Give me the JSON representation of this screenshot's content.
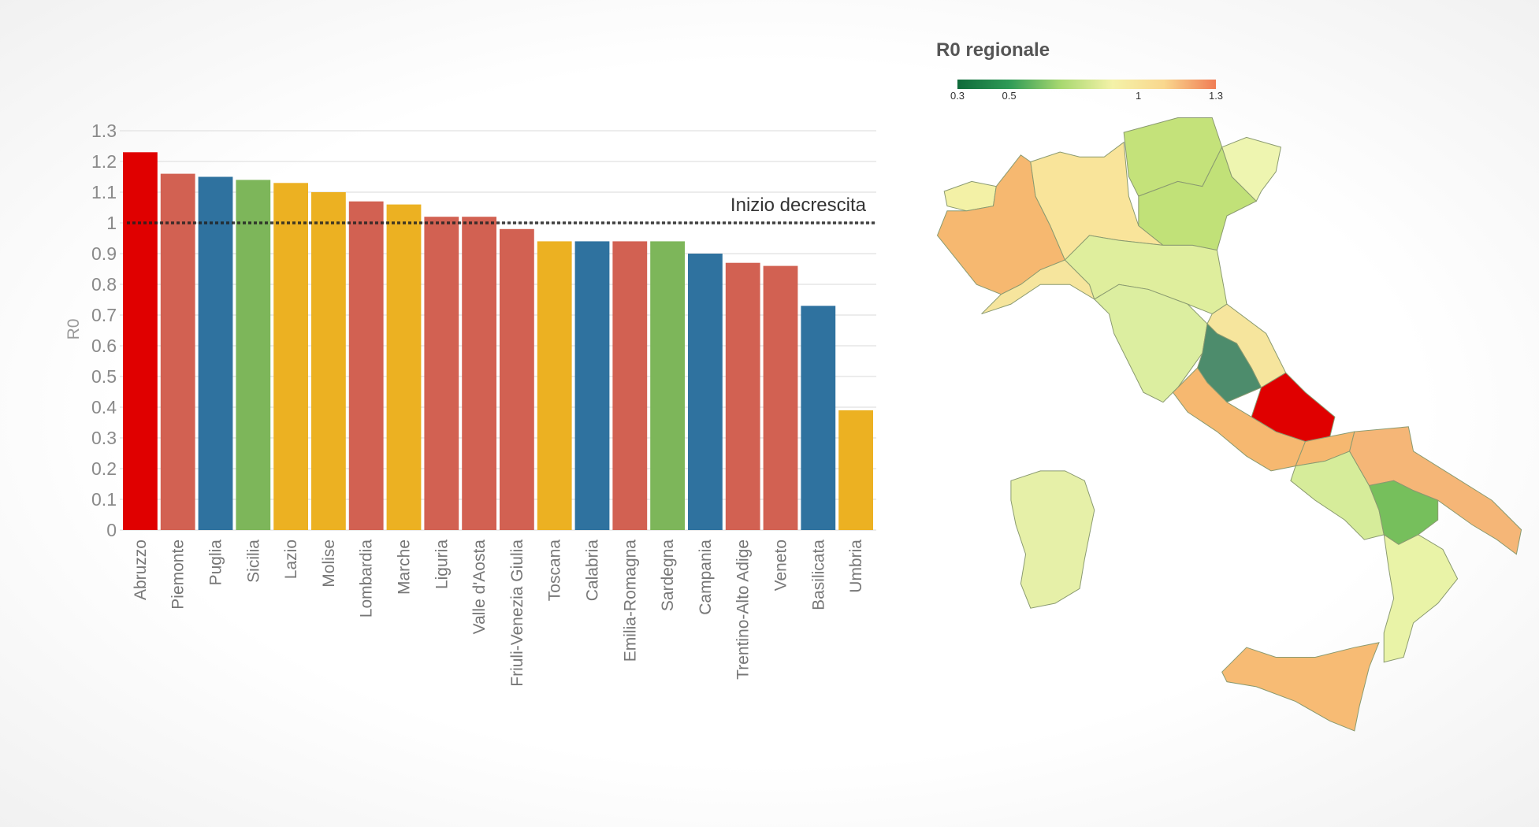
{
  "chart_data": {
    "type": "bar",
    "ylabel": "R0",
    "xlabel": "",
    "ylim": [
      0,
      1.3
    ],
    "yticks": [
      "0",
      "0.1",
      "0.2",
      "0.3",
      "0.4",
      "0.5",
      "0.6",
      "0.7",
      "0.8",
      "0.9",
      "1",
      "1.1",
      "1.2",
      "1.3"
    ],
    "grid": true,
    "categories": [
      "Abruzzo",
      "Piemonte",
      "Puglia",
      "Sicilia",
      "Lazio",
      "Molise",
      "Lombardia",
      "Marche",
      "Liguria",
      "Valle d'Aosta",
      "Friuli-Venezia Giulia",
      "Toscana",
      "Calabria",
      "Emilia-Romagna",
      "Sardegna",
      "Campania",
      "Trentino-Alto Adige",
      "Veneto",
      "Basilicata",
      "Umbria"
    ],
    "values": [
      1.23,
      1.16,
      1.15,
      1.14,
      1.13,
      1.1,
      1.07,
      1.06,
      1.02,
      1.02,
      0.98,
      0.94,
      0.94,
      0.94,
      0.94,
      0.9,
      0.87,
      0.86,
      0.73,
      0.39
    ],
    "bar_colors": [
      "#e00000",
      "#d26152",
      "#2f729f",
      "#7db65a",
      "#ecb122",
      "#ecb122",
      "#d26152",
      "#ecb122",
      "#d26152",
      "#d26152",
      "#d26152",
      "#ecb122",
      "#2f729f",
      "#d26152",
      "#7db65a",
      "#2f729f",
      "#d26152",
      "#d26152",
      "#2f729f",
      "#ecb122"
    ],
    "reference_line": {
      "value": 1,
      "label": "Inizio decrescita",
      "style": "dotted"
    }
  },
  "map": {
    "title": "R0 regionale",
    "legend": {
      "ticks": [
        "0.3",
        "0.5",
        "1",
        "1.3"
      ],
      "tick_values": [
        0.3,
        0.5,
        1,
        1.3
      ],
      "gradient": [
        "#0f6a3a",
        "#2e9a56",
        "#a8d870",
        "#f4f2a8",
        "#f9d78e",
        "#f07d55"
      ]
    },
    "fills": {
      "Valle d'Aosta": "#f3f1a6",
      "Piemonte": "#f6b870",
      "Lombardia": "#f9e49a",
      "Trentino-Alto Adige": "#c4e27a",
      "Veneto": "#c1e178",
      "Friuli-Venezia Giulia": "#eef5b0",
      "Liguria": "#f6e59d",
      "Emilia-Romagna": "#dfee9d",
      "Toscana": "#dceea0",
      "Marche": "#f6e59d",
      "Umbria": "#4d8c6c",
      "Lazio": "#f6b870",
      "Abruzzo": "#e00000",
      "Molise": "#f6b870",
      "Campania": "#d6ec9a",
      "Puglia": "#f5b677",
      "Basilicata": "#76bf5c",
      "Calabria": "#e9f3a7",
      "Sicilia": "#f7bb74",
      "Sardegna": "#e6f0a8"
    }
  }
}
